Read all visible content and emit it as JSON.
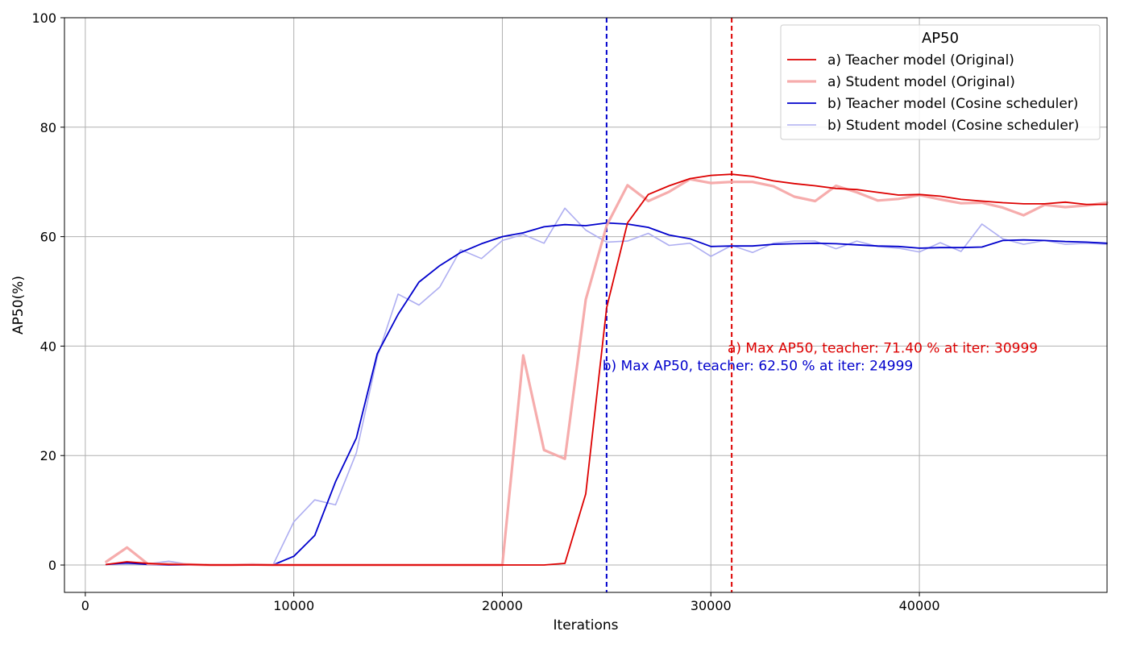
{
  "chart_data": {
    "type": "line",
    "xlabel": "Iterations",
    "ylabel": "AP50(%)",
    "xlim": [
      -1000,
      49000
    ],
    "ylim": [
      -5,
      100
    ],
    "xticks": [
      0,
      10000,
      20000,
      30000,
      40000
    ],
    "yticks": [
      0,
      20,
      40,
      60,
      80,
      100
    ],
    "xtick_labels": [
      "0",
      "10000",
      "20000",
      "30000",
      "40000"
    ],
    "ytick_labels": [
      "0",
      "20",
      "40",
      "60",
      "80",
      "100"
    ],
    "grid": true,
    "legend": {
      "title": "AP50",
      "placement": "top-right"
    },
    "x": [
      1000,
      2000,
      3000,
      4000,
      5000,
      6000,
      7000,
      8000,
      9000,
      10000,
      11000,
      12000,
      13000,
      14000,
      15000,
      16000,
      17000,
      18000,
      19000,
      20000,
      21000,
      22000,
      23000,
      24000,
      25000,
      26000,
      27000,
      28000,
      29000,
      30000,
      31000,
      32000,
      33000,
      34000,
      35000,
      36000,
      37000,
      38000,
      39000,
      40000,
      41000,
      42000,
      43000,
      44000,
      45000,
      46000,
      47000,
      48000,
      49000
    ],
    "series": [
      {
        "name": "a) Teacher model (Original)",
        "color": "#dd0000",
        "opacity": 1,
        "style": "solid",
        "values": [
          0.1,
          0.6,
          0.3,
          0.1,
          0.1,
          0,
          0,
          0,
          0,
          0,
          0,
          0,
          0,
          0,
          0,
          0,
          0,
          0,
          0,
          0,
          0,
          0,
          0.3,
          13,
          47,
          62.5,
          67.7,
          69.3,
          70.6,
          71.2,
          71.4,
          71.0,
          70.2,
          69.7,
          69.3,
          68.8,
          68.6,
          68.1,
          67.6,
          67.7,
          67.4,
          66.8,
          66.5,
          66.2,
          66.0,
          66.0,
          66.3,
          65.9,
          65.9
        ]
      },
      {
        "name": "a) Student model (Original)",
        "color": "#f5a3a3",
        "opacity": 0.9,
        "style": "thick",
        "values": [
          0.6,
          3.2,
          0.2,
          0.2,
          0.1,
          0,
          0,
          0.1,
          0,
          0,
          0,
          0,
          0,
          0,
          0,
          0,
          0,
          0,
          0,
          0,
          38.3,
          21,
          19.4,
          48.5,
          62,
          69.4,
          66.5,
          68.2,
          70.5,
          69.8,
          70.0,
          70.0,
          69.2,
          67.3,
          66.5,
          69.3,
          68.1,
          66.6,
          66.9,
          67.6,
          66.8,
          66.1,
          66.2,
          65.3,
          63.9,
          65.8,
          65.4,
          65.7,
          66.2
        ]
      },
      {
        "name": "b) Teacher model (Cosine scheduler)",
        "color": "#0000cc",
        "opacity": 1,
        "style": "solid",
        "values": [
          0.1,
          0.4,
          0.1,
          0,
          0,
          0,
          0,
          0.1,
          0,
          1.6,
          5.4,
          15.2,
          23.2,
          38.6,
          45.8,
          51.7,
          54.7,
          57.1,
          58.7,
          60,
          60.7,
          61.8,
          62.2,
          62.0,
          62.5,
          62.3,
          61.7,
          60.3,
          59.6,
          58.2,
          58.3,
          58.3,
          58.6,
          58.7,
          58.8,
          58.7,
          58.5,
          58.3,
          58.2,
          57.9,
          58.0,
          58.0,
          58.1,
          59.3,
          59.4,
          59.3,
          59.1,
          59.0,
          58.8
        ]
      },
      {
        "name": "b) Student model (Cosine scheduler)",
        "color": "#aaaaf0",
        "opacity": 0.95,
        "style": "thin",
        "values": [
          0.1,
          0.2,
          0.2,
          0.7,
          0.1,
          0.1,
          0,
          0,
          0,
          7.9,
          11.9,
          11,
          20.5,
          38,
          49.5,
          47.5,
          50.8,
          57.6,
          56,
          59.3,
          60.4,
          58.8,
          65.2,
          61.2,
          59,
          59.2,
          60.6,
          58.4,
          58.8,
          56.4,
          58.4,
          57.1,
          58.8,
          59.2,
          59.2,
          57.8,
          59.2,
          58.2,
          57.9,
          57.2,
          58.9,
          57.3,
          62.3,
          59.6,
          58.6,
          59.3,
          58.6,
          58.8,
          58.6
        ]
      }
    ],
    "annotations": [
      {
        "id": "a",
        "vline_x": 30999,
        "color": "#dd0000",
        "text": "a) Max AP50, teacher: 71.40 % at iter: 30999",
        "text_x": 30800,
        "text_y": 38.8
      },
      {
        "id": "b",
        "vline_x": 24999,
        "color": "#0000cc",
        "text": "b) Max AP50, teacher: 62.50 % at iter: 24999",
        "text_x": 24800,
        "text_y": 35.6
      }
    ]
  }
}
